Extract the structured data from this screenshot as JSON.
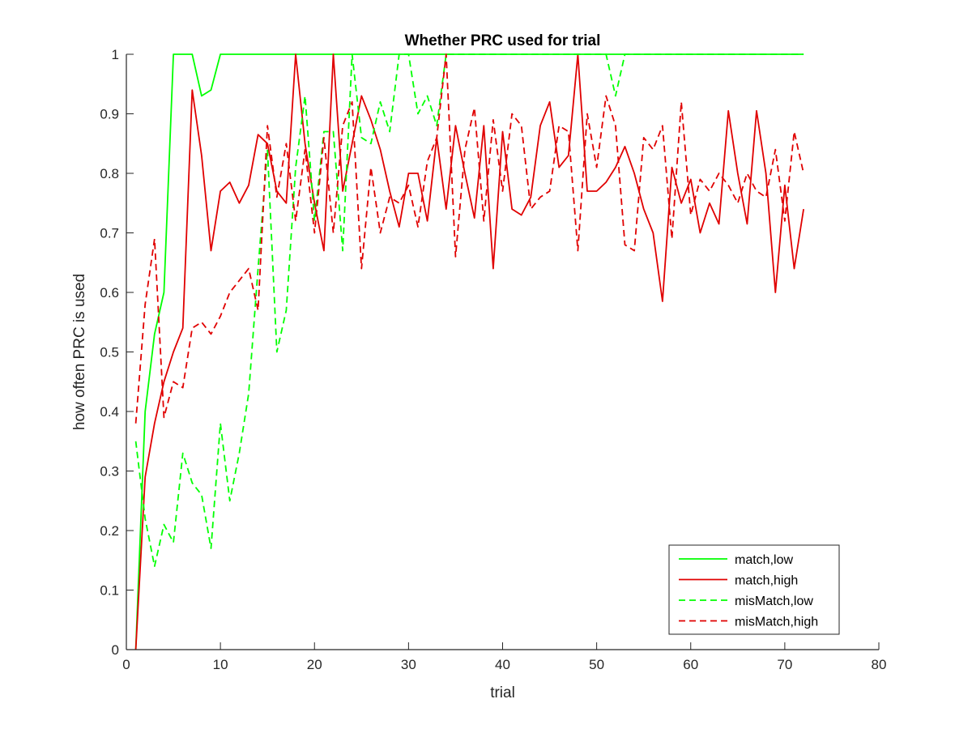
{
  "chart_data": {
    "type": "line",
    "title": "Whether PRC used for trial",
    "xlabel": "trial",
    "ylabel": "how often PRC is used",
    "xlim": [
      0,
      80
    ],
    "ylim": [
      0,
      1
    ],
    "xticks": [
      "0",
      "10",
      "20",
      "30",
      "40",
      "50",
      "60",
      "70",
      "80"
    ],
    "yticks": [
      "0",
      "0.1",
      "0.2",
      "0.3",
      "0.4",
      "0.5",
      "0.6",
      "0.7",
      "0.8",
      "0.9",
      "1"
    ],
    "grid": false,
    "legend_position": "bottom-right",
    "series": [
      {
        "name": "match,low",
        "color": "#00ff00",
        "dash": "solid",
        "values": [
          0.0,
          0.4,
          0.53,
          0.6,
          1.0,
          1.0,
          1.0,
          0.93,
          0.94,
          1.0,
          1.0,
          1.0,
          1.0,
          1.0,
          1.0,
          1.0,
          1.0,
          1.0,
          1.0,
          1.0,
          1.0,
          1.0,
          1.0,
          1.0,
          1.0,
          1.0,
          1.0,
          1.0,
          1.0,
          1.0,
          1.0,
          1.0,
          1.0,
          1.0,
          1.0,
          1.0,
          1.0,
          1.0,
          1.0,
          1.0,
          1.0,
          1.0,
          1.0,
          1.0,
          1.0,
          1.0,
          1.0,
          1.0,
          1.0,
          1.0,
          1.0,
          1.0,
          1.0,
          1.0,
          1.0,
          1.0,
          1.0,
          1.0,
          1.0,
          1.0,
          1.0,
          1.0,
          1.0,
          1.0,
          1.0,
          1.0,
          1.0,
          1.0,
          1.0,
          1.0,
          1.0,
          1.0
        ]
      },
      {
        "name": "match,high",
        "color": "#e00000",
        "dash": "solid",
        "values": [
          0.0,
          0.29,
          0.38,
          0.45,
          0.5,
          0.54,
          0.94,
          0.83,
          0.67,
          0.77,
          0.785,
          0.75,
          0.78,
          0.865,
          0.85,
          0.77,
          0.75,
          1.0,
          0.85,
          0.75,
          0.67,
          1.0,
          0.77,
          0.85,
          0.93,
          0.89,
          0.84,
          0.77,
          0.71,
          0.8,
          0.8,
          0.72,
          0.86,
          0.74,
          0.88,
          0.8,
          0.725,
          0.88,
          0.64,
          0.87,
          0.74,
          0.73,
          0.76,
          0.88,
          0.92,
          0.81,
          0.83,
          1.0,
          0.77,
          0.77,
          0.785,
          0.81,
          0.845,
          0.8,
          0.74,
          0.7,
          0.585,
          0.81,
          0.75,
          0.79,
          0.7,
          0.75,
          0.715,
          0.905,
          0.8,
          0.715,
          0.905,
          0.8,
          0.6,
          0.78,
          0.64,
          0.74
        ]
      },
      {
        "name": "misMatch,low",
        "color": "#00ff00",
        "dash": "dashed",
        "values": [
          0.35,
          0.22,
          0.14,
          0.21,
          0.18,
          0.33,
          0.28,
          0.26,
          0.17,
          0.38,
          0.25,
          0.33,
          0.43,
          0.64,
          0.84,
          0.5,
          0.57,
          0.81,
          0.93,
          0.72,
          0.87,
          0.87,
          0.67,
          1.0,
          0.86,
          0.85,
          0.92,
          0.87,
          1.0,
          1.0,
          0.9,
          0.93,
          0.88,
          1.0,
          1.0,
          1.0,
          1.0,
          1.0,
          1.0,
          1.0,
          1.0,
          1.0,
          1.0,
          1.0,
          1.0,
          1.0,
          1.0,
          1.0,
          1.0,
          1.0,
          1.0,
          0.93,
          1.0,
          1.0,
          1.0,
          1.0,
          1.0,
          1.0,
          1.0,
          1.0,
          1.0,
          1.0,
          1.0,
          1.0,
          1.0,
          1.0,
          1.0,
          1.0,
          1.0,
          1.0,
          1.0,
          1.0
        ]
      },
      {
        "name": "misMatch,high",
        "color": "#e00000",
        "dash": "dashed",
        "values": [
          0.38,
          0.58,
          0.69,
          0.39,
          0.45,
          0.44,
          0.54,
          0.55,
          0.53,
          0.56,
          0.6,
          0.62,
          0.64,
          0.57,
          0.88,
          0.76,
          0.85,
          0.72,
          0.84,
          0.7,
          0.86,
          0.7,
          0.88,
          0.92,
          0.64,
          0.81,
          0.7,
          0.76,
          0.75,
          0.78,
          0.71,
          0.82,
          0.86,
          1.0,
          0.66,
          0.84,
          0.91,
          0.72,
          0.89,
          0.77,
          0.9,
          0.88,
          0.74,
          0.76,
          0.77,
          0.88,
          0.87,
          0.67,
          0.9,
          0.81,
          0.93,
          0.88,
          0.68,
          0.67,
          0.86,
          0.84,
          0.88,
          0.69,
          0.92,
          0.73,
          0.79,
          0.77,
          0.8,
          0.78,
          0.75,
          0.8,
          0.77,
          0.76,
          0.84,
          0.72,
          0.87,
          0.8
        ]
      }
    ]
  }
}
